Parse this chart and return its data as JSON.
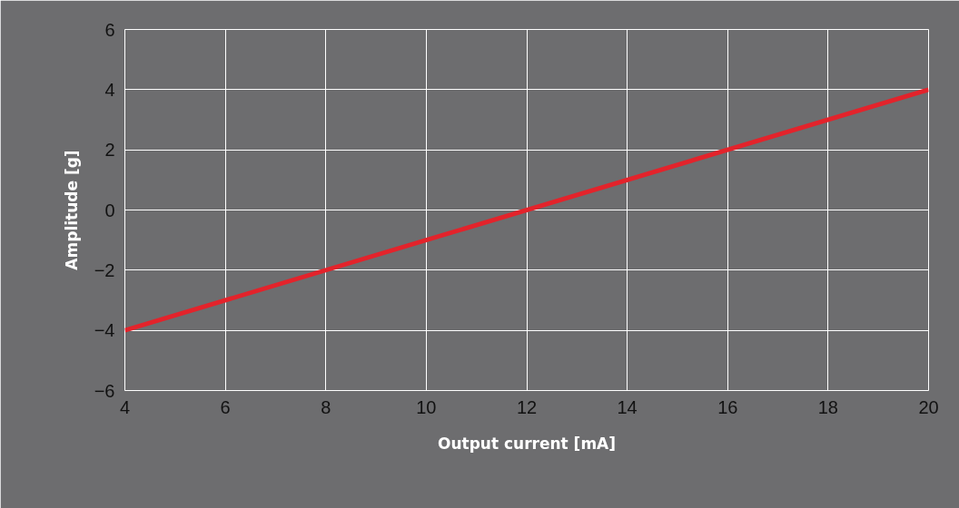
{
  "chart_data": {
    "type": "line",
    "xlabel": "Output current [mA]",
    "ylabel": "Amplitude [g]",
    "x": [
      4,
      20
    ],
    "series": [
      {
        "color": "#e3232b",
        "values": [
          -4,
          4
        ]
      }
    ],
    "xlim": [
      4,
      20
    ],
    "ylim": [
      -6,
      6
    ],
    "xticks": [
      4,
      6,
      8,
      10,
      12,
      14,
      16,
      18,
      20
    ],
    "yticks": [
      -6,
      -4,
      -2,
      0,
      2,
      4,
      6
    ],
    "grid": true,
    "marker": "none",
    "line_style": "solid"
  }
}
